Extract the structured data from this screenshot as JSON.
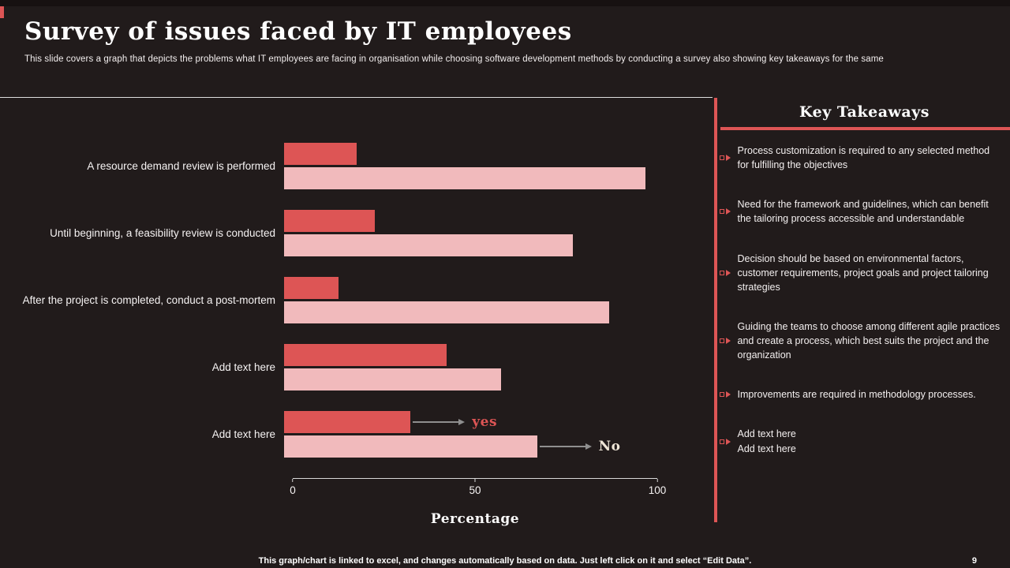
{
  "slide": {
    "title": "Survey of issues faced by IT employees",
    "subtitle": "This slide covers a graph that depicts the problems what IT employees are facing in organisation while choosing software development methods by conducting a survey  also showing key takeaways for the same",
    "footer": "This graph/chart is linked to excel, and changes automatically based on data. Just left click on it and select “Edit Data”.",
    "page_number": "9"
  },
  "colors": {
    "background": "#211b1b",
    "accent_red": "#dd5555",
    "bar_pink": "#f1babc",
    "annotation_no": "#efe6d7",
    "arrow_gray": "#8f8f8f"
  },
  "chart_data": {
    "type": "bar",
    "orientation": "horizontal",
    "title": "",
    "xlabel": "Percentage",
    "ylabel": "",
    "xlim": [
      0,
      100
    ],
    "ticks": [
      0,
      50,
      100
    ],
    "grid": false,
    "legend_position": "none",
    "categories": [
      "A resource demand review is performed",
      "Until beginning, a feasibility review is conducted",
      "After the project is completed, conduct a post-mortem",
      "Add text here",
      "Add text here"
    ],
    "series": [
      {
        "name": "yes",
        "color": "#dd5555",
        "values": [
          20,
          25,
          15,
          45,
          35
        ]
      },
      {
        "name": "No",
        "color": "#f1babc",
        "values": [
          100,
          80,
          90,
          60,
          70
        ]
      }
    ],
    "annotations": [
      {
        "category_index": 4,
        "series_index": 0,
        "label": "yes",
        "color": "#dd5555"
      },
      {
        "category_index": 4,
        "series_index": 1,
        "label": "No",
        "color": "#efe6d7"
      }
    ]
  },
  "key_takeaways": {
    "title": "Key Takeaways",
    "items": [
      "Process customization is required to any selected method for fulfilling  the objectives",
      "Need for the framework and guidelines,  which can benefit the tailoring process accessible and understandable",
      "Decision should be based on environmental factors, customer requirements, project goals and project tailoring  strategies",
      "Guiding  the teams to choose among different agile practices and create a process, which best suits the project and the organization",
      "Improvements are required in methodology processes.",
      "Add text here\nAdd text here"
    ]
  }
}
